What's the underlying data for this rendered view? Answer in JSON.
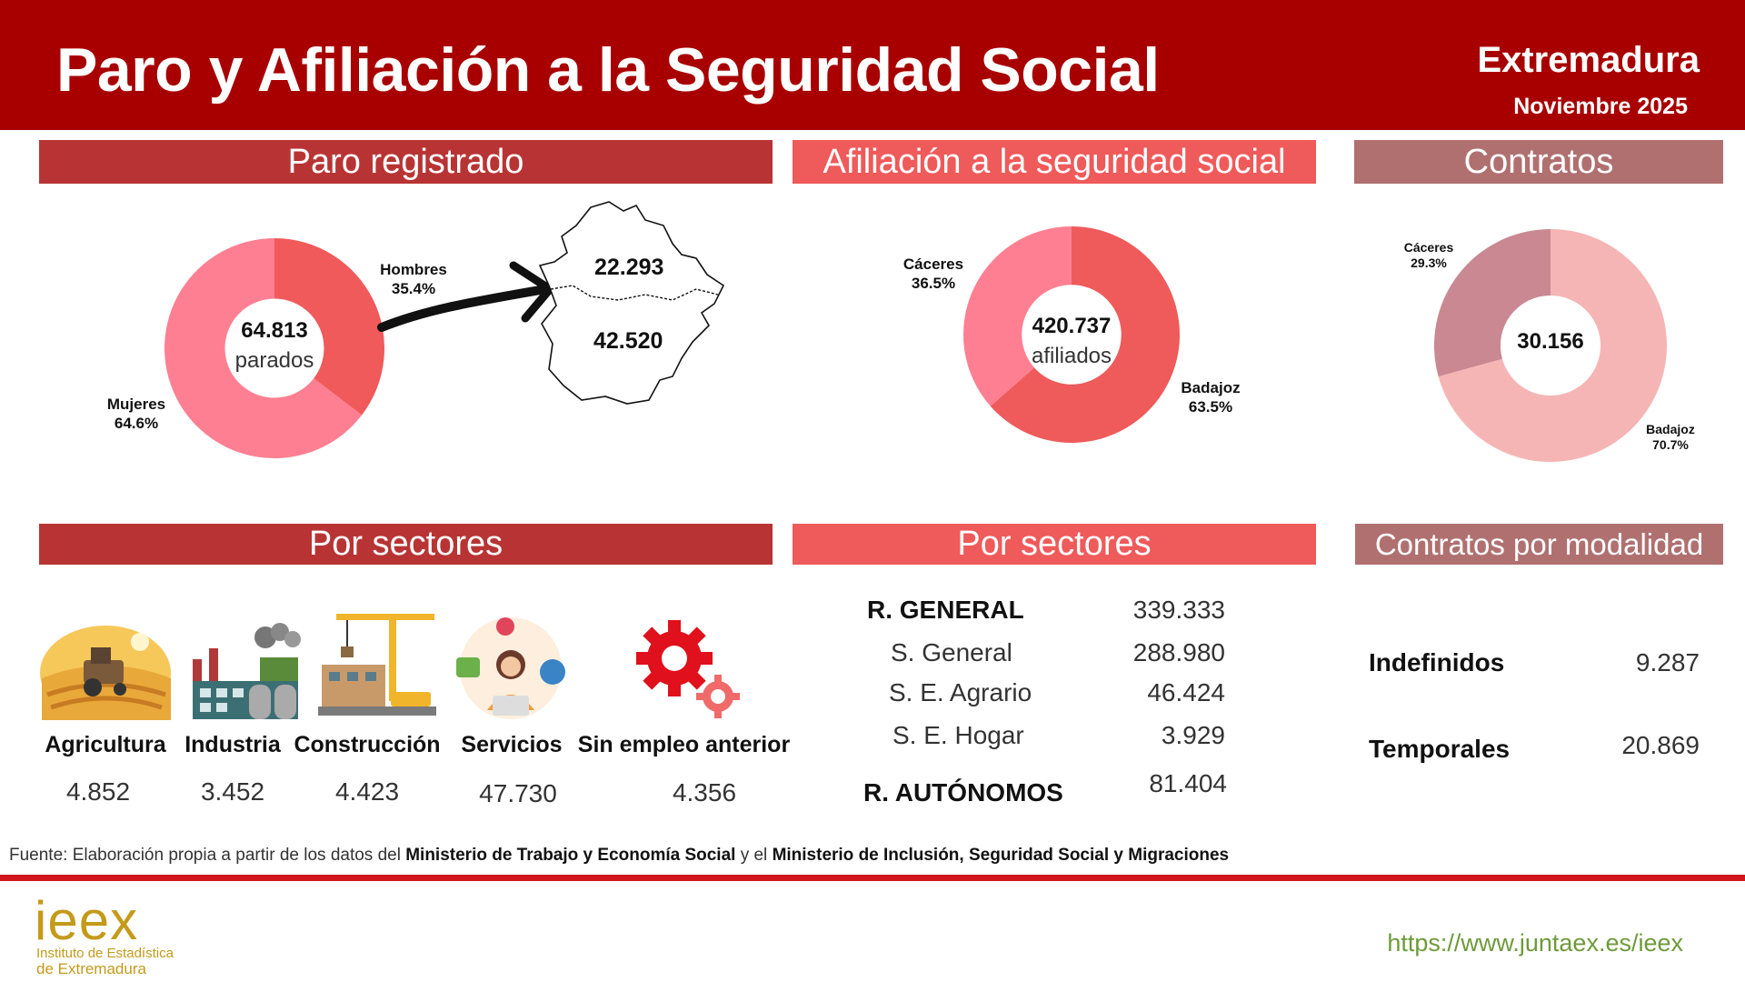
{
  "header": {
    "title": "Paro y Afiliación a la Seguridad Social",
    "region": "Extremadura",
    "period": "Noviembre 2025"
  },
  "colors": {
    "header_bg": "#a80000",
    "paro_bar": "#b83434",
    "afiliacion_bar": "#ef5a5a",
    "contratos_bar": "#b07070",
    "paro_hombres": "#f05a5a",
    "paro_mujeres": "#ff7f92",
    "afil_badajoz": "#ef5a5a",
    "afil_caceres": "#ff7f92",
    "ctr_badajoz": "#f6b5b5",
    "ctr_caceres": "#c98892"
  },
  "sections": {
    "paro": "Paro registrado",
    "afiliacion": "Afiliación a la seguridad social",
    "contratos": "Contratos",
    "paro_sectores": "Por sectores",
    "afil_sectores": "Por sectores",
    "contratos_modalidad": "Contratos por modalidad"
  },
  "chart_data": [
    {
      "type": "pie",
      "name": "paro",
      "center_value": "64.813",
      "center_unit": "parados",
      "slices": [
        {
          "label": "Hombres",
          "percent": 35.4,
          "pct_label": "35.4%",
          "color": "#f05a5a"
        },
        {
          "label": "Mujeres",
          "percent": 64.6,
          "pct_label": "64.6%",
          "color": "#ff7f92"
        }
      ],
      "map": {
        "caceres": "22.293",
        "badajoz": "42.520"
      }
    },
    {
      "type": "pie",
      "name": "afiliacion",
      "center_value": "420.737",
      "center_unit": "afiliados",
      "slices": [
        {
          "label": "Badajoz",
          "percent": 63.5,
          "pct_label": "63.5%",
          "color": "#ef5a5a"
        },
        {
          "label": "Cáceres",
          "percent": 36.5,
          "pct_label": "36.5%",
          "color": "#ff7f92"
        }
      ]
    },
    {
      "type": "pie",
      "name": "contratos",
      "center_value": "30.156",
      "slices": [
        {
          "label": "Badajoz",
          "percent": 70.7,
          "pct_label": "70.7%",
          "color": "#f6b5b5"
        },
        {
          "label": "Cáceres",
          "percent": 29.3,
          "pct_label": "29.3%",
          "color": "#c98892"
        }
      ]
    },
    {
      "type": "table",
      "name": "paro_por_sectores",
      "rows": [
        {
          "sector": "Agricultura",
          "value": "4.852",
          "icon": "tractor-field-icon"
        },
        {
          "sector": "Industria",
          "value": "3.452",
          "icon": "factory-icon"
        },
        {
          "sector": "Construcción",
          "value": "4.423",
          "icon": "crane-construction-icon"
        },
        {
          "sector": "Servicios",
          "value": "47.730",
          "icon": "call-center-icon"
        },
        {
          "sector": "Sin empleo anterior",
          "value": "4.356",
          "icon": "gears-icon"
        }
      ]
    },
    {
      "type": "table",
      "name": "afiliacion_por_sectores",
      "rows": [
        {
          "label": "R. GENERAL",
          "value": "339.333"
        },
        {
          "label": "S. General",
          "value": "288.980"
        },
        {
          "label": "S. E. Agrario",
          "value": "46.424"
        },
        {
          "label": "S. E. Hogar",
          "value": "3.929"
        },
        {
          "label": "R. AUTÓNOMOS",
          "value": "81.404"
        }
      ]
    },
    {
      "type": "table",
      "name": "contratos_por_modalidad",
      "rows": [
        {
          "label": "Indefinidos",
          "value": "9.287"
        },
        {
          "label": "Temporales",
          "value": "20.869"
        }
      ]
    }
  ],
  "footer": {
    "source_prefix": "Fuente: Elaboración propia a partir de los datos del ",
    "source_org1": "Ministerio de Trabajo y Economía Social",
    "source_mid": " y el ",
    "source_org2": "Ministerio de Inclusión, Seguridad Social y Migraciones",
    "logo": "ieex",
    "logo_line1": "Instituto de Estadística",
    "logo_line2": "de Extremadura",
    "url": "https://www.juntaex.es/ieex"
  }
}
